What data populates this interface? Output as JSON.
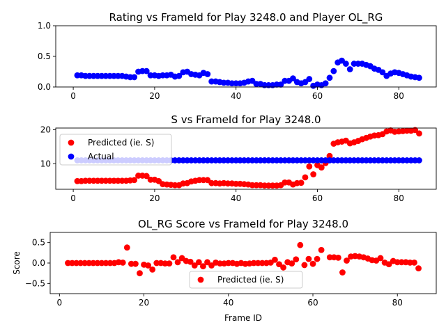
{
  "chart_data": [
    {
      "type": "scatter",
      "title": "Rating vs FrameId for Play 3248.0 and Player OL_RG",
      "xlabel": "",
      "ylabel": "",
      "xlim": [
        -4.3,
        89.2
      ],
      "ylim": [
        0.0,
        1.0
      ],
      "xticks": [
        0,
        20,
        40,
        60,
        80
      ],
      "yticks": [
        0.0,
        0.5,
        1.0
      ],
      "ytick_labels": [
        "0.0",
        "0.5",
        "1.0"
      ],
      "legend": null,
      "colors": {
        "series": "#0000ff"
      },
      "series": [
        {
          "x": [
            1,
            2,
            3,
            4,
            5,
            6,
            7,
            8,
            9,
            10,
            11,
            12,
            13,
            14,
            15,
            16,
            17,
            18,
            19,
            20,
            21,
            22,
            23,
            24,
            25,
            26,
            27,
            28,
            29,
            30,
            31,
            32,
            33,
            34,
            35,
            36,
            37,
            38,
            39,
            40,
            41,
            42,
            43,
            44,
            45,
            46,
            47,
            48,
            49,
            50,
            51,
            52,
            53,
            54,
            55,
            56,
            57,
            58,
            59,
            60,
            61,
            62,
            63,
            64,
            65,
            66,
            67,
            68,
            69,
            70,
            71,
            72,
            73,
            74,
            75,
            76,
            77,
            78,
            79,
            80,
            81,
            82,
            83,
            84,
            85
          ],
          "values": [
            0.19,
            0.19,
            0.18,
            0.18,
            0.18,
            0.18,
            0.18,
            0.18,
            0.18,
            0.18,
            0.18,
            0.18,
            0.17,
            0.16,
            0.16,
            0.25,
            0.26,
            0.26,
            0.19,
            0.19,
            0.18,
            0.19,
            0.19,
            0.2,
            0.17,
            0.18,
            0.24,
            0.25,
            0.21,
            0.2,
            0.19,
            0.23,
            0.21,
            0.09,
            0.09,
            0.08,
            0.07,
            0.07,
            0.06,
            0.06,
            0.06,
            0.07,
            0.09,
            0.1,
            0.05,
            0.05,
            0.03,
            0.03,
            0.03,
            0.04,
            0.04,
            0.1,
            0.1,
            0.14,
            0.08,
            0.06,
            0.08,
            0.13,
            0.02,
            0.04,
            0.03,
            0.06,
            0.15,
            0.26,
            0.4,
            0.43,
            0.38,
            0.29,
            0.38,
            0.38,
            0.38,
            0.36,
            0.34,
            0.3,
            0.28,
            0.24,
            0.18,
            0.22,
            0.24,
            0.23,
            0.21,
            0.19,
            0.17,
            0.16,
            0.15
          ]
        }
      ]
    },
    {
      "type": "scatter",
      "title": "S vs FrameId for Play 3248.0",
      "xlabel": "",
      "ylabel": "",
      "xlim": [
        -4.3,
        89.2
      ],
      "ylim": [
        2.5,
        20.5
      ],
      "xticks": [
        0,
        20,
        40,
        60,
        80
      ],
      "yticks": [
        10,
        20
      ],
      "ytick_labels": [
        "10",
        "20"
      ],
      "legend": "upper left",
      "colors": {
        "predicted": "#ff0000",
        "actual": "#0000ff"
      },
      "series": [
        {
          "name": "Predicted (ie. S)",
          "color": "#ff0000",
          "x": [
            1,
            2,
            3,
            4,
            5,
            6,
            7,
            8,
            9,
            10,
            11,
            12,
            13,
            14,
            15,
            16,
            17,
            18,
            19,
            20,
            21,
            22,
            23,
            24,
            25,
            26,
            27,
            28,
            29,
            30,
            31,
            32,
            33,
            34,
            35,
            36,
            37,
            38,
            39,
            40,
            41,
            42,
            43,
            44,
            45,
            46,
            47,
            48,
            49,
            50,
            51,
            52,
            53,
            54,
            55,
            56,
            57,
            58,
            59,
            60,
            61,
            62,
            63,
            64,
            65,
            66,
            67,
            68,
            69,
            70,
            71,
            72,
            73,
            74,
            75,
            76,
            77,
            78,
            79,
            80,
            81,
            82,
            83,
            84,
            85
          ],
          "values": [
            4.9,
            4.9,
            5.0,
            5.0,
            5.0,
            5.0,
            5.0,
            5.0,
            5.0,
            5.0,
            5.0,
            5.0,
            5.0,
            5.1,
            5.2,
            6.5,
            6.5,
            6.4,
            5.3,
            5.3,
            4.9,
            4.0,
            3.9,
            3.8,
            3.7,
            3.7,
            4.2,
            4.3,
            4.8,
            5.0,
            5.2,
            5.2,
            5.2,
            4.3,
            4.3,
            4.2,
            4.3,
            4.2,
            4.2,
            4.1,
            4.1,
            4.0,
            3.9,
            3.7,
            3.7,
            3.7,
            3.6,
            3.6,
            3.6,
            3.6,
            3.7,
            4.5,
            4.5,
            3.9,
            4.3,
            4.4,
            6.0,
            9.2,
            6.9,
            9.6,
            8.9,
            10.2,
            12.3,
            15.9,
            16.3,
            16.5,
            16.8,
            16.0,
            16.3,
            16.7,
            17.2,
            17.6,
            18.0,
            18.3,
            18.4,
            18.7,
            19.5,
            19.8,
            19.4,
            19.5,
            19.6,
            19.7,
            19.7,
            19.9,
            18.9
          ]
        },
        {
          "name": "Actual",
          "color": "#0000ff",
          "x": [
            1,
            2,
            3,
            4,
            5,
            6,
            7,
            8,
            9,
            10,
            11,
            12,
            13,
            14,
            15,
            16,
            17,
            18,
            19,
            20,
            21,
            22,
            23,
            24,
            25,
            26,
            27,
            28,
            29,
            30,
            31,
            32,
            33,
            34,
            35,
            36,
            37,
            38,
            39,
            40,
            41,
            42,
            43,
            44,
            45,
            46,
            47,
            48,
            49,
            50,
            51,
            52,
            53,
            54,
            55,
            56,
            57,
            58,
            59,
            60,
            61,
            62,
            63,
            64,
            65,
            66,
            67,
            68,
            69,
            70,
            71,
            72,
            73,
            74,
            75,
            76,
            77,
            78,
            79,
            80,
            81,
            82,
            83,
            84,
            85
          ],
          "values": [
            11.0,
            11.0,
            11.0,
            11.0,
            11.0,
            11.0,
            11.0,
            11.0,
            11.0,
            11.0,
            11.0,
            11.0,
            11.0,
            11.0,
            11.0,
            11.0,
            11.0,
            11.0,
            11.0,
            11.0,
            11.0,
            11.0,
            11.0,
            11.0,
            11.0,
            11.0,
            11.0,
            11.0,
            11.0,
            11.0,
            11.0,
            11.0,
            11.0,
            11.0,
            11.0,
            11.0,
            11.0,
            11.0,
            11.0,
            11.0,
            11.0,
            11.0,
            11.0,
            11.0,
            11.0,
            11.0,
            11.0,
            11.0,
            11.0,
            11.0,
            11.0,
            11.0,
            11.0,
            11.0,
            11.0,
            11.0,
            11.0,
            11.0,
            11.0,
            11.0,
            11.0,
            11.0,
            11.0,
            11.0,
            11.0,
            11.0,
            11.0,
            11.0,
            11.0,
            11.0,
            11.0,
            11.0,
            11.0,
            11.0,
            11.0,
            11.0,
            11.0,
            11.0,
            11.0,
            11.0,
            11.0,
            11.0,
            11.0,
            11.0,
            11.0
          ]
        }
      ]
    },
    {
      "type": "scatter",
      "title": "OL_RG Score vs FrameId for Play 3248.0",
      "xlabel": "Frame ID",
      "ylabel": "Score",
      "xlim": [
        -2.2,
        89.2
      ],
      "ylim": [
        -0.75,
        0.75
      ],
      "xticks": [
        0,
        20,
        40,
        60,
        80
      ],
      "yticks": [
        -0.5,
        0.0,
        0.5
      ],
      "ytick_labels": [
        "−0.5",
        "0.0",
        "0.5"
      ],
      "legend": "lower center",
      "colors": {
        "predicted": "#ff0000"
      },
      "series": [
        {
          "name": "Predicted (ie. S)",
          "color": "#ff0000",
          "x": [
            2,
            3,
            4,
            5,
            6,
            7,
            8,
            9,
            10,
            11,
            12,
            13,
            14,
            15,
            16,
            17,
            18,
            19,
            20,
            21,
            22,
            23,
            24,
            25,
            26,
            27,
            28,
            29,
            30,
            31,
            32,
            33,
            34,
            35,
            36,
            37,
            38,
            39,
            40,
            41,
            42,
            43,
            44,
            45,
            46,
            47,
            48,
            49,
            50,
            51,
            52,
            53,
            54,
            55,
            56,
            57,
            58,
            59,
            60,
            61,
            62,
            63,
            64,
            65,
            66,
            67,
            68,
            69,
            70,
            71,
            72,
            73,
            74,
            75,
            76,
            77,
            78,
            79,
            80,
            81,
            82,
            83,
            84,
            85
          ],
          "values": [
            0.0,
            0.0,
            0.0,
            0.0,
            0.0,
            0.0,
            0.0,
            0.0,
            0.0,
            0.0,
            0.0,
            0.0,
            0.02,
            0.01,
            0.38,
            -0.02,
            -0.02,
            -0.25,
            -0.04,
            -0.06,
            -0.16,
            0.0,
            0.0,
            -0.01,
            -0.01,
            0.14,
            0.02,
            0.12,
            0.05,
            0.03,
            -0.06,
            0.02,
            -0.08,
            0.02,
            -0.06,
            0.01,
            -0.01,
            -0.01,
            0.0,
            0.0,
            -0.02,
            0.0,
            -0.02,
            -0.01,
            0.0,
            0.0,
            0.0,
            0.0,
            0.01,
            0.08,
            -0.03,
            -0.11,
            0.02,
            -0.01,
            0.09,
            0.44,
            -0.05,
            0.1,
            -0.02,
            0.1,
            0.32,
            null,
            0.14,
            0.14,
            0.13,
            -0.23,
            0.06,
            0.16,
            0.17,
            0.16,
            0.14,
            0.11,
            0.07,
            0.06,
            0.12,
            0.01,
            -0.03,
            0.05,
            0.02,
            0.02,
            0.02,
            0.01,
            0.01,
            -0.13
          ]
        }
      ]
    }
  ]
}
